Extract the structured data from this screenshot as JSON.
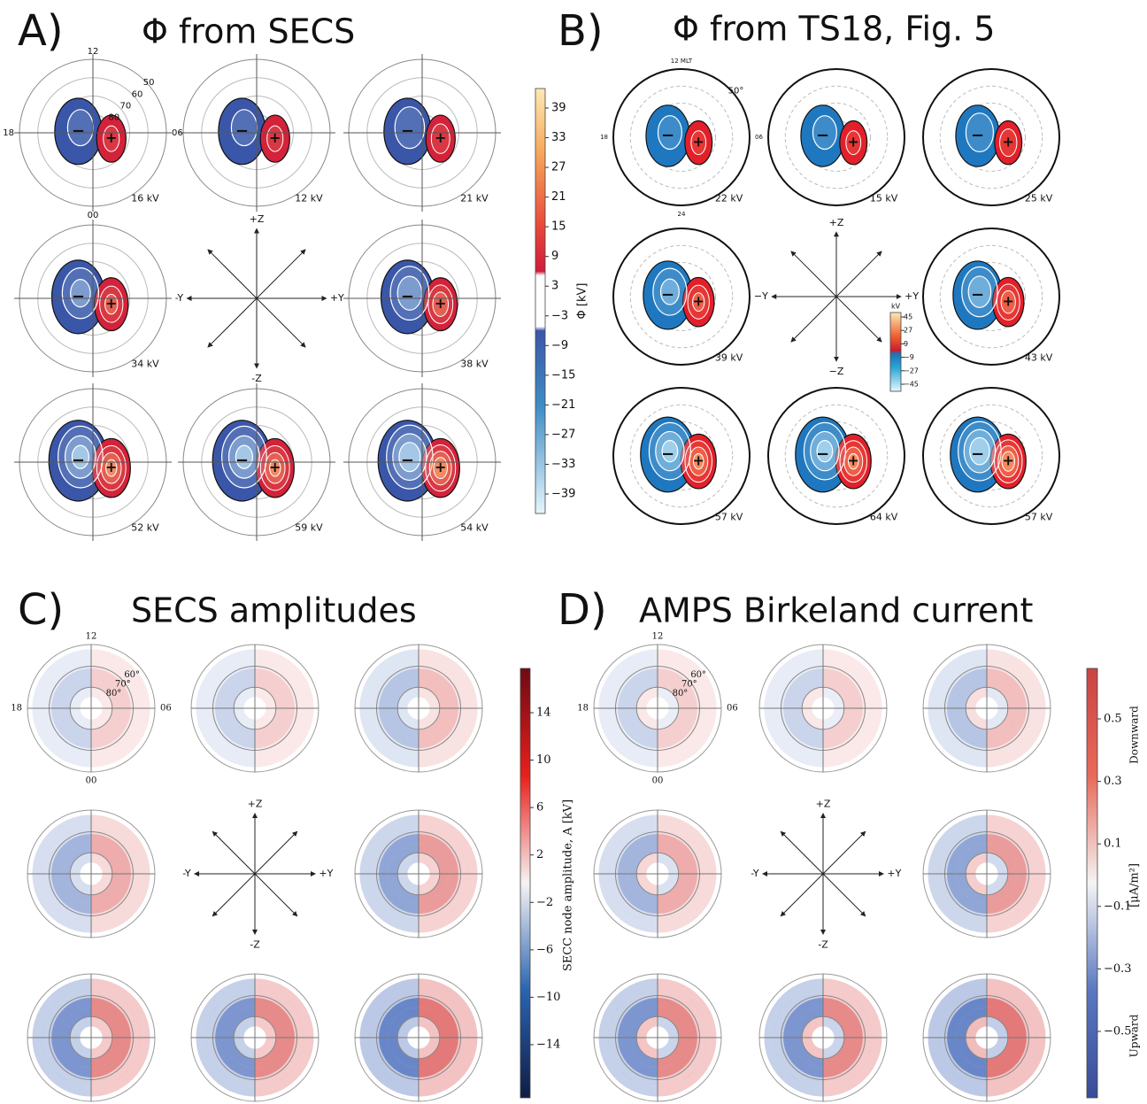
{
  "panels": [
    {
      "label": "A)",
      "title": "Φ from SECS",
      "mlt": [
        "12",
        "18",
        "06",
        "00"
      ],
      "lat": [
        "50",
        "60",
        "70",
        "80"
      ],
      "markers": [
        "−",
        "+"
      ],
      "potentials": [
        "16 kV",
        "12 kV",
        "21 kV",
        "34 kV",
        "38 kV",
        "52 kV",
        "59 kV",
        "54 kV"
      ],
      "axes": [
        "+Z",
        "-Y",
        "+Y",
        "-Z"
      ],
      "colorbar": {
        "label": "Φ [kV]",
        "ticks": [
          "39",
          "33",
          "27",
          "21",
          "15",
          "9",
          "3",
          "−3",
          "−9",
          "−15",
          "−21",
          "−27",
          "−33",
          "−39"
        ]
      }
    },
    {
      "label": "B)",
      "title": "Φ from TS18, Fig. 5",
      "mlt": [
        "12 MLT",
        "18",
        "06",
        "24"
      ],
      "lat": [
        "50°"
      ],
      "markers": [
        "−",
        "+"
      ],
      "potentials": [
        "22 kV",
        "15 kV",
        "25 kV",
        "39 kV",
        "43 kV",
        "57 kV",
        "64 kV",
        "57 kV"
      ],
      "axes": [
        "+Z",
        "−Y",
        "+Y",
        "−Z"
      ],
      "colorbar": {
        "label": "kV",
        "ticks": [
          "45",
          "27",
          "9",
          "−9",
          "−27",
          "−45"
        ]
      }
    },
    {
      "label": "C)",
      "title": "SECS amplitudes",
      "mlt": [
        "12",
        "18",
        "06",
        "00"
      ],
      "lat": [
        "60°",
        "70°",
        "80°"
      ],
      "axes": [
        "+Z",
        "-Y",
        "+Y",
        "-Z"
      ],
      "colorbar": {
        "label": "SECC node amplitude, A [kV]",
        "ticks": [
          "14",
          "10",
          "6",
          "2",
          "−2",
          "−6",
          "−10",
          "−14"
        ]
      }
    },
    {
      "label": "D)",
      "title": "AMPS Birkeland current",
      "mlt": [
        "12",
        "18",
        "06",
        "00"
      ],
      "lat": [
        "60°",
        "70°",
        "80°"
      ],
      "axes": [
        "+Z",
        "-Y",
        "+Y",
        "-Z"
      ],
      "colorbar": {
        "label": "[μA/m²]",
        "ticks": [
          "0.5",
          "0.3",
          "0.1",
          "−0.1",
          "−0.3",
          "−0.5"
        ],
        "top": "Downward",
        "bottom": "Upward"
      }
    }
  ]
}
